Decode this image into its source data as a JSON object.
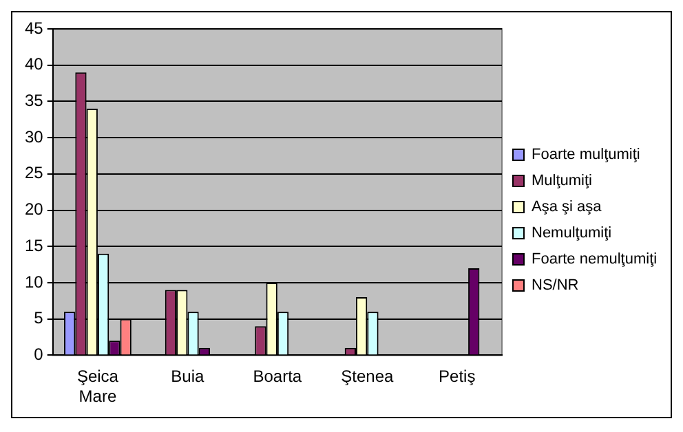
{
  "chart_data": {
    "type": "bar",
    "categories": [
      "Şeica Mare",
      "Buia",
      "Boarta",
      "Ştenea",
      "Petiş"
    ],
    "series": [
      {
        "name": "Foarte mulţumiţi",
        "color": "#9999ff",
        "values": [
          6,
          0,
          0,
          0,
          0
        ]
      },
      {
        "name": "Mulţumiţi",
        "color": "#993366",
        "values": [
          39,
          9,
          4,
          1,
          0
        ]
      },
      {
        "name": "Aşa şi aşa",
        "color": "#ffffcc",
        "values": [
          34,
          9,
          10,
          8,
          0
        ]
      },
      {
        "name": "Nemulţumiţi",
        "color": "#ccffff",
        "values": [
          14,
          6,
          6,
          6,
          0
        ]
      },
      {
        "name": "Foarte nemulţumiţi",
        "color": "#660066",
        "values": [
          2,
          1,
          0,
          0,
          12
        ]
      },
      {
        "name": "NS/NR",
        "color": "#ff8080",
        "values": [
          5,
          0,
          0,
          0,
          0
        ]
      }
    ],
    "ylim": [
      0,
      45
    ],
    "yticks": [
      0,
      5,
      10,
      15,
      20,
      25,
      30,
      35,
      40,
      45
    ],
    "grid": "y",
    "legend": "right"
  }
}
